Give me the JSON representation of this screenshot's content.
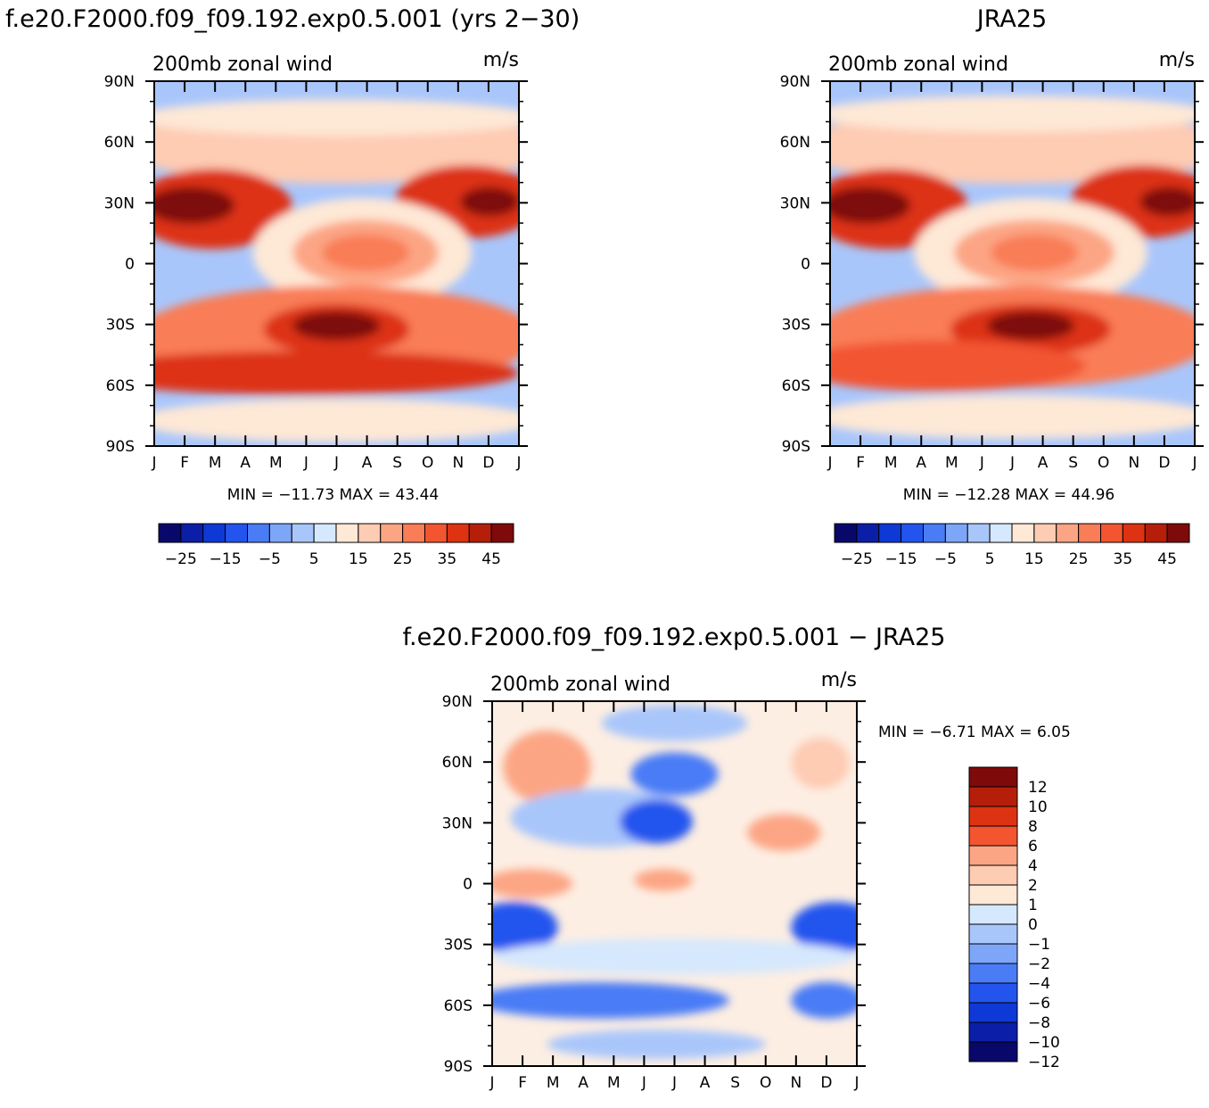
{
  "chart_data": [
    {
      "type": "heatmap",
      "title": "f.e20.F2000.f09_f09.192.exp0.5.001 (yrs 2−30)",
      "left_label": "200mb zonal wind",
      "units": "m/s",
      "x_ticks": [
        "J",
        "F",
        "M",
        "A",
        "M",
        "J",
        "J",
        "A",
        "S",
        "O",
        "N",
        "D",
        "J"
      ],
      "y_ticks": [
        "90N",
        "60N",
        "30N",
        "0",
        "30S",
        "60S",
        "90S"
      ],
      "ylim": [
        -90,
        90
      ],
      "stats": "MIN = −11.73  MAX =   43.44",
      "min": -11.73,
      "max": 43.44,
      "colorbar": {
        "orientation": "horizontal",
        "colors": [
          "#08086b",
          "#0b1ea8",
          "#0f39d6",
          "#2355ee",
          "#4a7cf6",
          "#7ea6f8",
          "#a9c6fb",
          "#d6e8fd",
          "#fee8d6",
          "#fecbb3",
          "#fca584",
          "#f97d57",
          "#f25530",
          "#dd3312",
          "#b51f0a",
          "#7e0a0a"
        ],
        "labels": [
          "−25",
          "−15",
          "−5",
          "5",
          "15",
          "25",
          "35",
          "45"
        ]
      }
    },
    {
      "type": "heatmap",
      "title": "JRA25",
      "left_label": "200mb zonal wind",
      "units": "m/s",
      "x_ticks": [
        "J",
        "F",
        "M",
        "A",
        "M",
        "J",
        "J",
        "A",
        "S",
        "O",
        "N",
        "D",
        "J"
      ],
      "y_ticks": [
        "90N",
        "60N",
        "30N",
        "0",
        "30S",
        "60S",
        "90S"
      ],
      "ylim": [
        -90,
        90
      ],
      "stats": "MIN = −12.28  MAX =   44.96",
      "min": -12.28,
      "max": 44.96,
      "colorbar": {
        "orientation": "horizontal",
        "colors": [
          "#08086b",
          "#0b1ea8",
          "#0f39d6",
          "#2355ee",
          "#4a7cf6",
          "#7ea6f8",
          "#a9c6fb",
          "#d6e8fd",
          "#fee8d6",
          "#fecbb3",
          "#fca584",
          "#f97d57",
          "#f25530",
          "#dd3312",
          "#b51f0a",
          "#7e0a0a"
        ],
        "labels": [
          "−25",
          "−15",
          "−5",
          "5",
          "15",
          "25",
          "35",
          "45"
        ]
      }
    },
    {
      "type": "heatmap",
      "title": "f.e20.F2000.f09_f09.192.exp0.5.001 − JRA25",
      "left_label": "200mb zonal wind",
      "units": "m/s",
      "x_ticks": [
        "J",
        "F",
        "M",
        "A",
        "M",
        "J",
        "J",
        "A",
        "S",
        "O",
        "N",
        "D",
        "J"
      ],
      "y_ticks": [
        "90N",
        "60N",
        "30N",
        "0",
        "30S",
        "60S",
        "90S"
      ],
      "ylim": [
        -90,
        90
      ],
      "stats": "MIN =    −6.71  MAX =     6.05",
      "min": -6.71,
      "max": 6.05,
      "colorbar": {
        "orientation": "vertical",
        "colors": [
          "#7e0a0a",
          "#b51f0a",
          "#dd3312",
          "#f25530",
          "#fca584",
          "#fecbb3",
          "#fee8d6",
          "#d6e8fd",
          "#a9c6fb",
          "#7ea6f8",
          "#4a7cf6",
          "#2355ee",
          "#0f39d6",
          "#0b1ea8",
          "#08086b"
        ],
        "labels": [
          "12",
          "10",
          "8",
          "6",
          "4",
          "2",
          "1",
          "0",
          "−1",
          "−2",
          "−4",
          "−6",
          "−8",
          "−10",
          "−12"
        ]
      }
    }
  ]
}
